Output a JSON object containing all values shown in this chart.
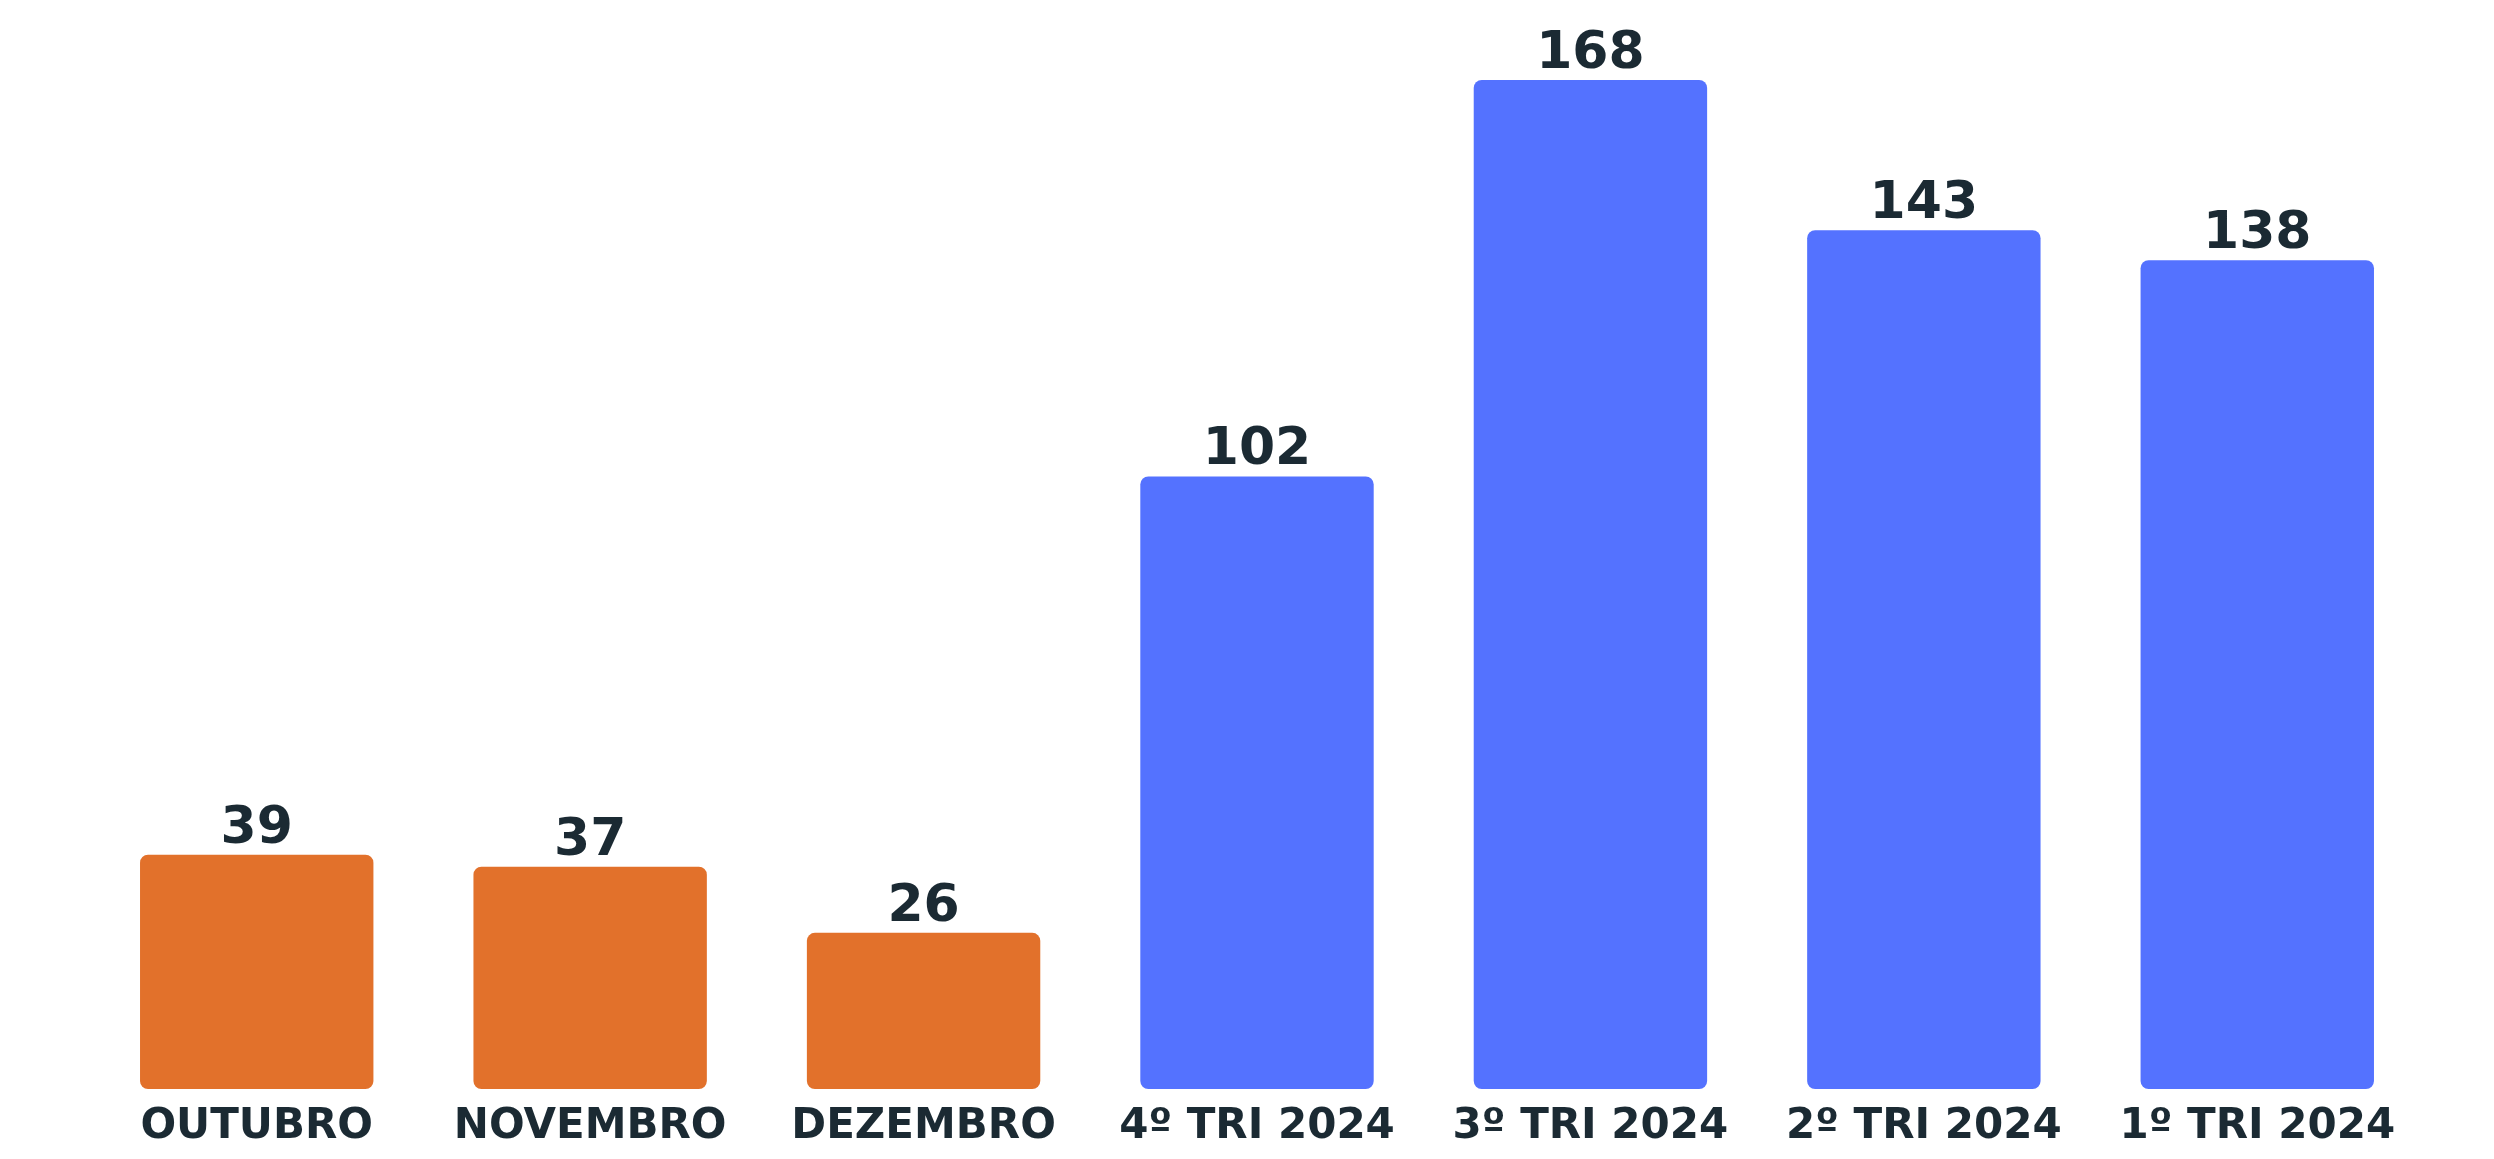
{
  "chart_data": {
    "type": "bar",
    "categories": [
      "OUTUBRO",
      "NOVEMBRO",
      "DEZEMBRO",
      "4º TRI 2024",
      "3º TRI 2024",
      "2º TRI 2024",
      "1º TRI 2024"
    ],
    "values": [
      39,
      37,
      26,
      102,
      168,
      143,
      138
    ],
    "colors": [
      "#e2712b",
      "#e2712b",
      "#e2712b",
      "#5472ff",
      "#5472ff",
      "#5472ff",
      "#5472ff"
    ],
    "data_labels": true
  }
}
